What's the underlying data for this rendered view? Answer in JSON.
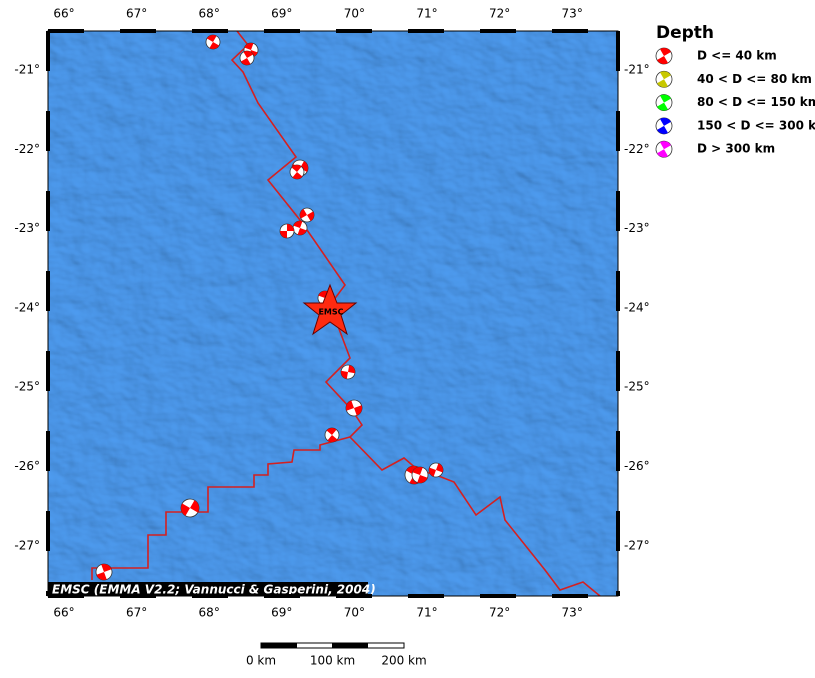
{
  "map": {
    "lon_labels": [
      "66°",
      "67°",
      "68°",
      "69°",
      "70°",
      "71°",
      "72°",
      "73°"
    ],
    "lat_labels": [
      "-21°",
      "-22°",
      "-23°",
      "-24°",
      "-25°",
      "-26°",
      "-27°"
    ],
    "credit": "EMSC (EMMA V2.2; Vannucci & Gasperini, 2004)",
    "epicenter_label": "EMSC"
  },
  "legend": {
    "title": "Depth",
    "items": [
      {
        "label": "D <= 40 km",
        "color": "#ff0000"
      },
      {
        "label": "40 < D <= 80 km",
        "color": "#c8c800"
      },
      {
        "label": "80 < D <= 150 km",
        "color": "#00ff00"
      },
      {
        "label": "150 < D <= 300 km",
        "color": "#0000ff"
      },
      {
        "label": "D > 300 km",
        "color": "#ff00ff"
      }
    ]
  },
  "scale_bar": {
    "labels": [
      "0 km",
      "100 km",
      "200 km"
    ]
  }
}
